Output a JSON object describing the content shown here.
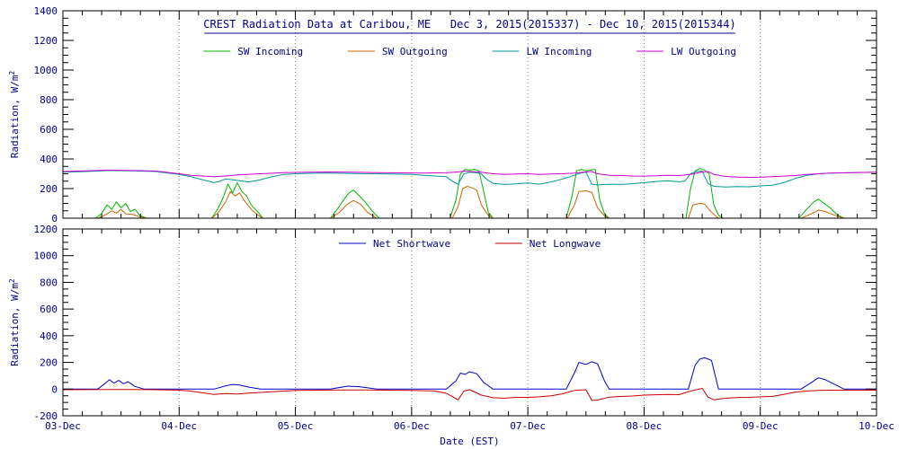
{
  "style": {
    "background": "#FFFFFF",
    "text_color": "#00008B",
    "axis_color": "#000000",
    "grid_color": "#777777"
  },
  "chart_data": [
    {
      "type": "line",
      "title": "CREST Radiation Data at Caribou, ME   Dec 3, 2015(2015337) - Dec 10, 2015(2015344)",
      "ylabel": "Radiation, W/m2",
      "ylim": [
        0,
        1400
      ],
      "ytick_step": 200,
      "yminor_step": 50,
      "xlim": [
        0,
        7
      ],
      "xticks": [
        0,
        1,
        2,
        3,
        4,
        5,
        6,
        7
      ],
      "xminor_step": 0.166667,
      "xticklabels": [],
      "grid": "vertical-dotted",
      "legend_position": "top-inside",
      "x_unit": "days since Dec 3, 2015 (EST)",
      "series": [
        {
          "name": "SW Incoming",
          "color": "#00B800",
          "x": [
            0,
            0.28,
            0.33,
            0.38,
            0.42,
            0.46,
            0.5,
            0.54,
            0.58,
            0.62,
            0.66,
            0.72,
            1.28,
            1.33,
            1.38,
            1.42,
            1.46,
            1.5,
            1.54,
            1.58,
            1.62,
            1.68,
            1.72,
            2.3,
            2.36,
            2.42,
            2.46,
            2.5,
            2.54,
            2.6,
            2.66,
            2.72,
            3.33,
            3.38,
            3.42,
            3.46,
            3.5,
            3.54,
            3.58,
            3.62,
            3.66,
            3.7,
            4.33,
            4.38,
            4.42,
            4.46,
            4.5,
            4.54,
            4.58,
            4.62,
            4.66,
            4.7,
            5.36,
            5.4,
            5.44,
            5.48,
            5.52,
            5.56,
            5.6,
            5.64,
            5.68,
            6.33,
            6.4,
            6.46,
            6.5,
            6.54,
            6.6,
            6.66,
            6.72,
            7
          ],
          "y": [
            0,
            0,
            30,
            90,
            60,
            110,
            70,
            100,
            45,
            60,
            20,
            0,
            0,
            60,
            140,
            230,
            170,
            240,
            180,
            150,
            90,
            40,
            0,
            0,
            60,
            130,
            170,
            190,
            160,
            110,
            50,
            0,
            0,
            120,
            300,
            330,
            325,
            330,
            320,
            180,
            40,
            0,
            0,
            150,
            320,
            330,
            320,
            325,
            330,
            120,
            30,
            0,
            0,
            200,
            320,
            335,
            325,
            300,
            90,
            20,
            0,
            0,
            60,
            110,
            130,
            105,
            70,
            25,
            0,
            0
          ]
        },
        {
          "name": "SW Outgoing",
          "color": "#CC6600",
          "x": [
            0,
            0.3,
            0.36,
            0.42,
            0.46,
            0.5,
            0.54,
            0.6,
            0.66,
            0.72,
            1.28,
            1.34,
            1.4,
            1.44,
            1.48,
            1.52,
            1.56,
            1.62,
            1.68,
            1.72,
            2.3,
            2.38,
            2.44,
            2.5,
            2.56,
            2.62,
            2.7,
            3.35,
            3.4,
            3.44,
            3.48,
            3.52,
            3.56,
            3.6,
            3.66,
            3.7,
            4.34,
            4.4,
            4.44,
            4.5,
            4.55,
            4.6,
            4.66,
            4.7,
            5.38,
            5.42,
            5.48,
            5.52,
            5.58,
            5.64,
            6.35,
            6.44,
            6.5,
            6.56,
            6.64,
            6.72,
            7
          ],
          "y": [
            0,
            0,
            20,
            50,
            35,
            60,
            30,
            25,
            10,
            0,
            0,
            40,
            110,
            180,
            150,
            170,
            120,
            60,
            20,
            0,
            0,
            40,
            90,
            120,
            95,
            40,
            0,
            0,
            80,
            200,
            215,
            205,
            190,
            90,
            20,
            0,
            0,
            90,
            180,
            185,
            175,
            70,
            15,
            0,
            0,
            90,
            100,
            95,
            40,
            0,
            0,
            30,
            55,
            45,
            20,
            0,
            0
          ]
        },
        {
          "name": "LW Incoming",
          "color": "#009999",
          "x": [
            0,
            0.2,
            0.4,
            0.6,
            0.8,
            1.0,
            1.1,
            1.2,
            1.3,
            1.35,
            1.4,
            1.5,
            1.6,
            1.7,
            1.8,
            1.9,
            2.0,
            2.2,
            2.4,
            2.6,
            2.8,
            3.0,
            3.1,
            3.2,
            3.3,
            3.35,
            3.4,
            3.45,
            3.5,
            3.55,
            3.6,
            3.65,
            3.7,
            3.8,
            3.9,
            4.0,
            4.1,
            4.2,
            4.3,
            4.4,
            4.45,
            4.5,
            4.55,
            4.6,
            4.7,
            4.8,
            4.9,
            5.0,
            5.1,
            5.2,
            5.3,
            5.35,
            5.4,
            5.45,
            5.5,
            5.55,
            5.6,
            5.7,
            5.8,
            5.9,
            6.0,
            6.1,
            6.2,
            6.3,
            6.4,
            6.5,
            6.6,
            6.8,
            7.0
          ],
          "y": [
            310,
            315,
            322,
            320,
            315,
            295,
            280,
            260,
            240,
            250,
            265,
            255,
            245,
            260,
            280,
            295,
            300,
            305,
            303,
            300,
            298,
            295,
            290,
            285,
            280,
            250,
            230,
            300,
            310,
            308,
            300,
            260,
            235,
            228,
            232,
            238,
            230,
            245,
            265,
            290,
            305,
            310,
            230,
            225,
            230,
            228,
            233,
            240,
            248,
            252,
            246,
            250,
            300,
            315,
            318,
            235,
            215,
            210,
            214,
            212,
            218,
            222,
            240,
            268,
            290,
            300,
            305,
            308,
            310
          ]
        },
        {
          "name": "LW Outgoing",
          "color": "#CC00CC",
          "x": [
            0,
            0.2,
            0.4,
            0.6,
            0.8,
            1.0,
            1.1,
            1.2,
            1.3,
            1.4,
            1.5,
            1.7,
            1.9,
            2.1,
            2.3,
            2.5,
            2.7,
            2.9,
            3.1,
            3.3,
            3.4,
            3.45,
            3.5,
            3.6,
            3.7,
            3.8,
            3.9,
            4.0,
            4.1,
            4.2,
            4.3,
            4.4,
            4.5,
            4.55,
            4.6,
            4.7,
            4.8,
            4.9,
            5.0,
            5.1,
            5.2,
            5.3,
            5.4,
            5.5,
            5.55,
            5.6,
            5.7,
            5.8,
            5.9,
            6.0,
            6.1,
            6.2,
            6.3,
            6.4,
            6.5,
            6.6,
            6.8,
            7.0
          ],
          "y": [
            315,
            320,
            325,
            322,
            318,
            300,
            290,
            285,
            280,
            285,
            292,
            300,
            308,
            310,
            312,
            310,
            308,
            306,
            304,
            308,
            312,
            318,
            315,
            310,
            300,
            295,
            298,
            300,
            295,
            298,
            300,
            305,
            312,
            315,
            300,
            290,
            288,
            285,
            284,
            286,
            290,
            288,
            295,
            312,
            315,
            295,
            282,
            278,
            276,
            277,
            280,
            284,
            288,
            295,
            300,
            305,
            308,
            310
          ]
        }
      ]
    },
    {
      "type": "line",
      "title": "",
      "xlabel": "Date (EST)",
      "ylabel": "Radiation, W/m2",
      "ylim": [
        -200,
        1200
      ],
      "ytick_step": 200,
      "yminor_step": 50,
      "xlim": [
        0,
        7
      ],
      "xticks": [
        0,
        1,
        2,
        3,
        4,
        5,
        6,
        7
      ],
      "xminor_step": 0.166667,
      "xticklabels": [
        "03-Dec",
        "04-Dec",
        "05-Dec",
        "06-Dec",
        "07-Dec",
        "08-Dec",
        "09-Dec",
        "10-Dec"
      ],
      "grid": "vertical-dotted",
      "legend_position": "top-inside",
      "series": [
        {
          "name": "Net Shortwave",
          "color": "#0000CC",
          "x": [
            0,
            0.3,
            0.36,
            0.4,
            0.44,
            0.48,
            0.52,
            0.56,
            0.62,
            0.7,
            1.3,
            1.4,
            1.46,
            1.52,
            1.6,
            1.7,
            2.3,
            2.45,
            2.55,
            2.7,
            3.3,
            3.38,
            3.42,
            3.46,
            3.5,
            3.56,
            3.62,
            3.7,
            4.33,
            4.4,
            4.44,
            4.5,
            4.55,
            4.6,
            4.66,
            4.7,
            5.38,
            5.44,
            5.48,
            5.52,
            5.58,
            5.64,
            6.35,
            6.44,
            6.5,
            6.56,
            6.64,
            6.72,
            7
          ],
          "y": [
            0,
            0,
            40,
            70,
            45,
            65,
            40,
            55,
            20,
            0,
            0,
            25,
            35,
            30,
            15,
            0,
            0,
            22,
            18,
            0,
            0,
            60,
            120,
            110,
            130,
            115,
            50,
            0,
            0,
            120,
            200,
            185,
            205,
            190,
            60,
            0,
            0,
            180,
            225,
            235,
            215,
            0,
            0,
            50,
            85,
            70,
            35,
            0,
            0
          ]
        },
        {
          "name": "Net Longwave",
          "color": "#CC0000",
          "x": [
            0,
            0.2,
            0.4,
            0.6,
            0.8,
            1.0,
            1.1,
            1.2,
            1.3,
            1.4,
            1.5,
            1.6,
            1.8,
            2.0,
            2.2,
            2.4,
            2.6,
            2.8,
            3.0,
            3.2,
            3.3,
            3.4,
            3.45,
            3.5,
            3.6,
            3.7,
            3.8,
            3.9,
            4.0,
            4.1,
            4.2,
            4.3,
            4.4,
            4.5,
            4.55,
            4.6,
            4.7,
            4.8,
            4.9,
            5.0,
            5.2,
            5.3,
            5.4,
            5.5,
            5.55,
            5.6,
            5.7,
            5.8,
            5.9,
            6.0,
            6.1,
            6.2,
            6.3,
            6.4,
            6.5,
            6.6,
            6.8,
            7.0
          ],
          "y": [
            -5,
            -4,
            -3,
            -3,
            -5,
            -8,
            -15,
            -28,
            -40,
            -33,
            -37,
            -30,
            -20,
            -10,
            -8,
            -6,
            -7,
            -8,
            -10,
            -14,
            -32,
            -80,
            -15,
            -5,
            -45,
            -65,
            -68,
            -62,
            -62,
            -58,
            -50,
            -35,
            -10,
            -5,
            -85,
            -82,
            -60,
            -55,
            -52,
            -45,
            -40,
            -42,
            -15,
            5,
            -60,
            -80,
            -68,
            -64,
            -62,
            -58,
            -55,
            -40,
            -22,
            -15,
            -10,
            -8,
            -8,
            -8
          ]
        }
      ]
    }
  ]
}
